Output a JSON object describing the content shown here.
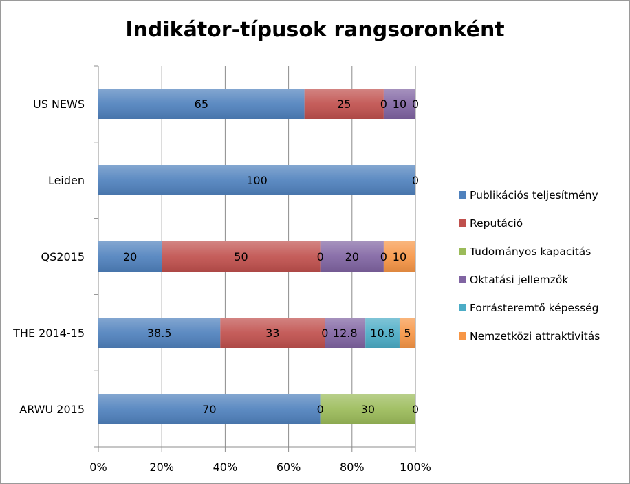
{
  "chart_data": {
    "type": "bar",
    "stacked": true,
    "orientation": "horizontal",
    "title": "Indikátor-típusok rangsoronként",
    "categories": [
      "US NEWS",
      "Leiden",
      "QS2015",
      "THE 2014-15",
      "ARWU 2015"
    ],
    "series": [
      {
        "name": "Publikációs teljesítmény",
        "color": "#4f81bd",
        "values": [
          65,
          100,
          20,
          38.5,
          70
        ]
      },
      {
        "name": "Reputáció",
        "color": "#c0504d",
        "values": [
          25,
          0,
          50,
          33,
          0
        ]
      },
      {
        "name": "Tudományos kapacitás",
        "color": "#9bbb59",
        "values": [
          0,
          0,
          0,
          0,
          30
        ]
      },
      {
        "name": "Oktatási jellemzők",
        "color": "#8064a2",
        "values": [
          10,
          0,
          20,
          12.8,
          0
        ]
      },
      {
        "name": "Forrásteremtő képesség",
        "color": "#4bacc6",
        "values": [
          0,
          0,
          0,
          10.8,
          0
        ]
      },
      {
        "name": "Nemzetközi attraktivitás",
        "color": "#f79646",
        "values": [
          0,
          0,
          10,
          5,
          0
        ]
      }
    ],
    "data_labels": [
      [
        "65",
        "25",
        "0",
        "10",
        "0",
        null
      ],
      [
        "100",
        null,
        null,
        null,
        null,
        "0"
      ],
      [
        "20",
        "50",
        "0",
        "20",
        "0",
        "10"
      ],
      [
        "38.5",
        "33",
        "0",
        "12.8",
        "10.8",
        "5"
      ],
      [
        "70",
        "0",
        "30",
        null,
        null,
        "0"
      ]
    ],
    "x_axis": {
      "ticks": [
        "0%",
        "20%",
        "40%",
        "60%",
        "80%",
        "100%"
      ],
      "range": [
        0,
        100
      ]
    },
    "gridlines": true,
    "legend_position": "right"
  }
}
